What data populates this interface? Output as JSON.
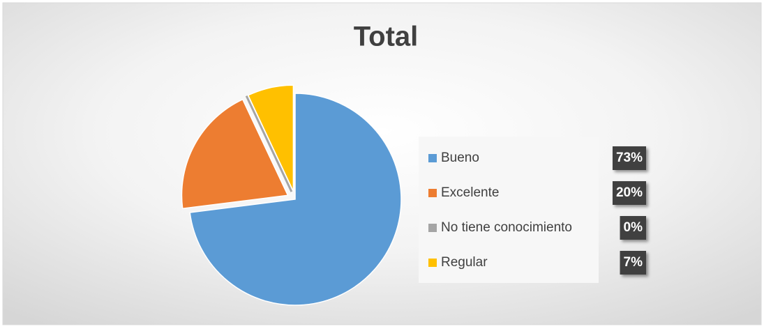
{
  "chart_data": {
    "type": "pie",
    "title": "Total",
    "categories": [
      "Bueno",
      "Excelente",
      "No tiene conocimiento",
      "Regular"
    ],
    "values": [
      73,
      20,
      0,
      7
    ],
    "value_labels": [
      "73%",
      "20%",
      "0%",
      "7%"
    ],
    "colors": [
      "#5b9bd5",
      "#ed7d31",
      "#a5a5a5",
      "#ffc000"
    ],
    "legend": "right"
  }
}
